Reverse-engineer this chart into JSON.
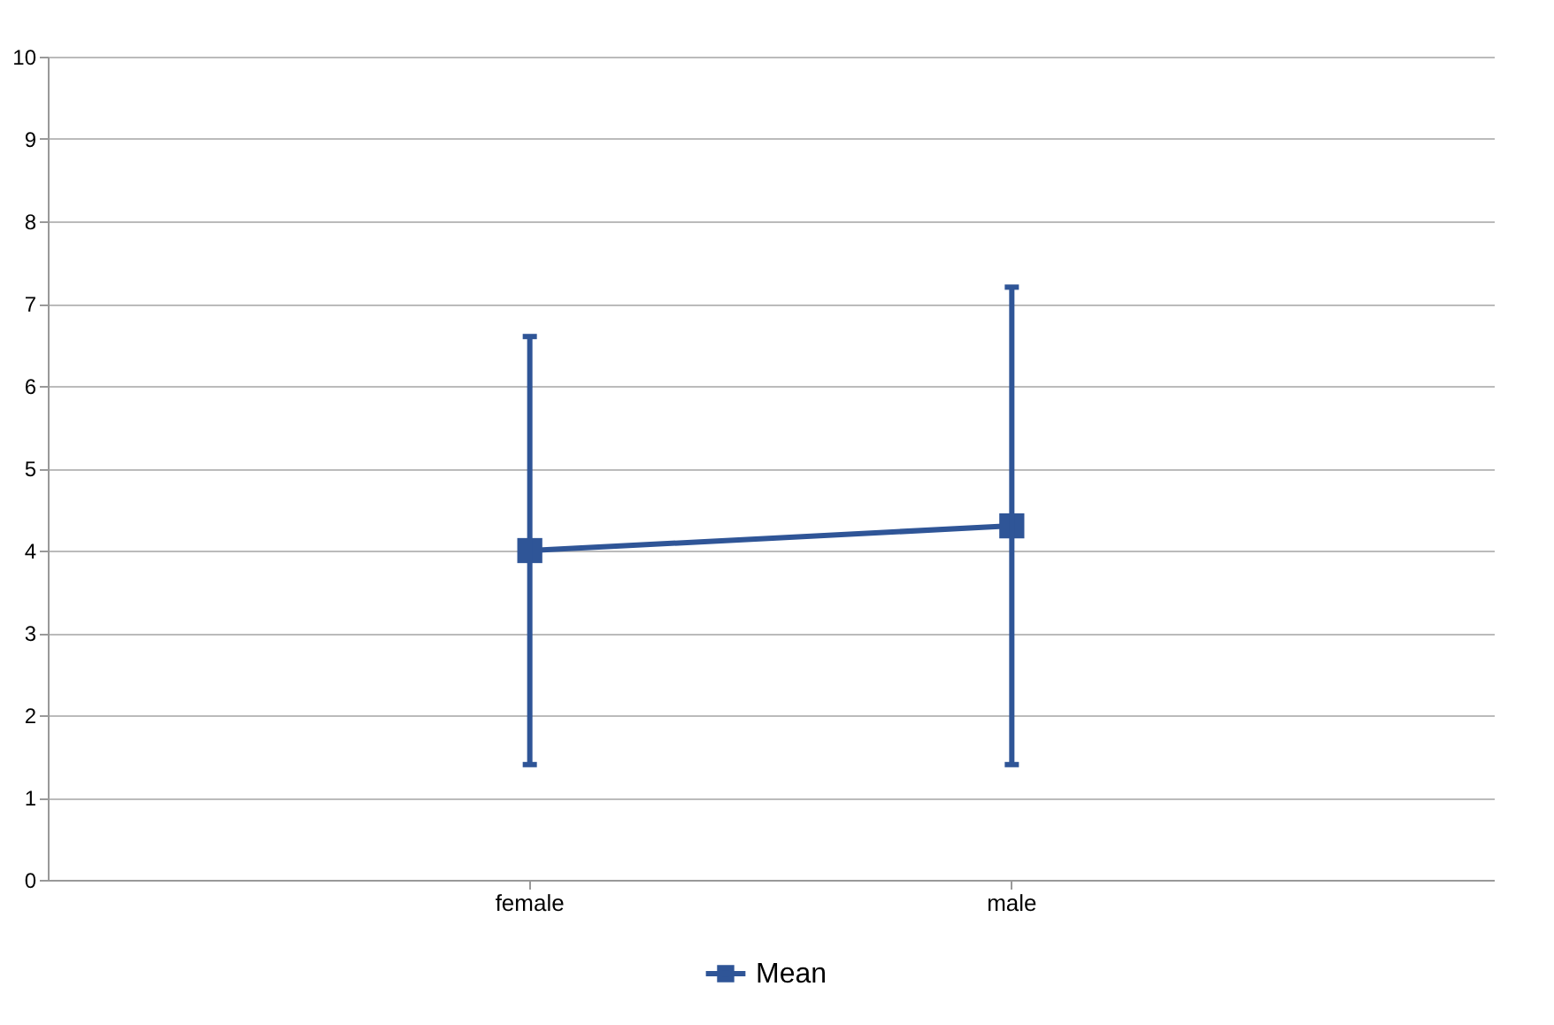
{
  "chart_data": {
    "type": "line",
    "categories": [
      "female",
      "male"
    ],
    "series": [
      {
        "name": "Mean",
        "color": "#2f5597",
        "values": [
          4.0,
          4.3
        ],
        "errors": [
          [
            1.4,
            6.6
          ],
          [
            1.4,
            7.2
          ]
        ]
      }
    ],
    "ylim": [
      0,
      10
    ],
    "yticks": [
      0,
      1,
      2,
      3,
      4,
      5,
      6,
      7,
      8,
      9,
      10
    ],
    "grid": "y",
    "legend": "bottom",
    "marker": "square"
  }
}
